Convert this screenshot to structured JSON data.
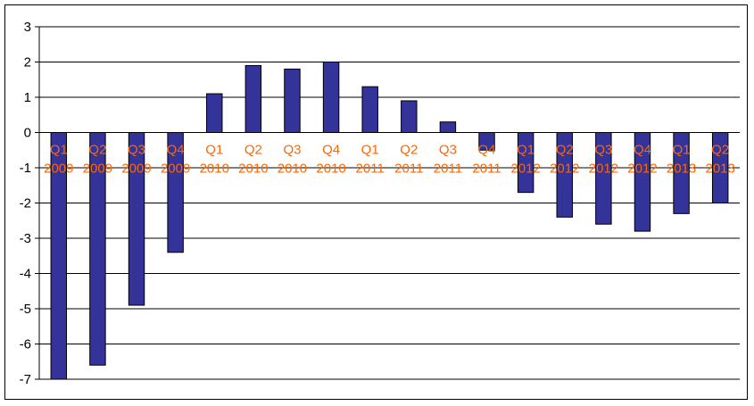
{
  "chart_data": {
    "type": "bar",
    "title": "",
    "xlabel": "",
    "ylabel": "",
    "ylim": [
      -7,
      3
    ],
    "yticks": [
      3,
      2,
      1,
      0,
      -1,
      -2,
      -3,
      -4,
      -5,
      -6,
      -7
    ],
    "grid": true,
    "legend": "none",
    "categories": [
      [
        "Q1",
        "2009"
      ],
      [
        "Q2",
        "2009"
      ],
      [
        "Q3",
        "2009"
      ],
      [
        "Q4",
        "2009"
      ],
      [
        "Q1",
        "2010"
      ],
      [
        "Q2",
        "2010"
      ],
      [
        "Q3",
        "2010"
      ],
      [
        "Q4",
        "2010"
      ],
      [
        "Q1",
        "2011"
      ],
      [
        "Q2",
        "2011"
      ],
      [
        "Q3",
        "2011"
      ],
      [
        "Q4",
        "2011"
      ],
      [
        "Q1",
        "2012"
      ],
      [
        "Q2",
        "2012"
      ],
      [
        "Q3",
        "2012"
      ],
      [
        "Q4",
        "2012"
      ],
      [
        "Q1",
        "2013"
      ],
      [
        "Q2",
        "2013"
      ]
    ],
    "values": [
      -7.0,
      -6.6,
      -4.9,
      -3.4,
      1.1,
      1.9,
      1.8,
      2.0,
      1.3,
      0.9,
      0.3,
      -0.5,
      -1.7,
      -2.4,
      -2.6,
      -2.8,
      -2.3,
      -2.0
    ],
    "colors": {
      "bar_fill": "#333399",
      "bar_stroke": "#000000",
      "category_label": "#ff6600",
      "gridline": "#000000"
    }
  }
}
